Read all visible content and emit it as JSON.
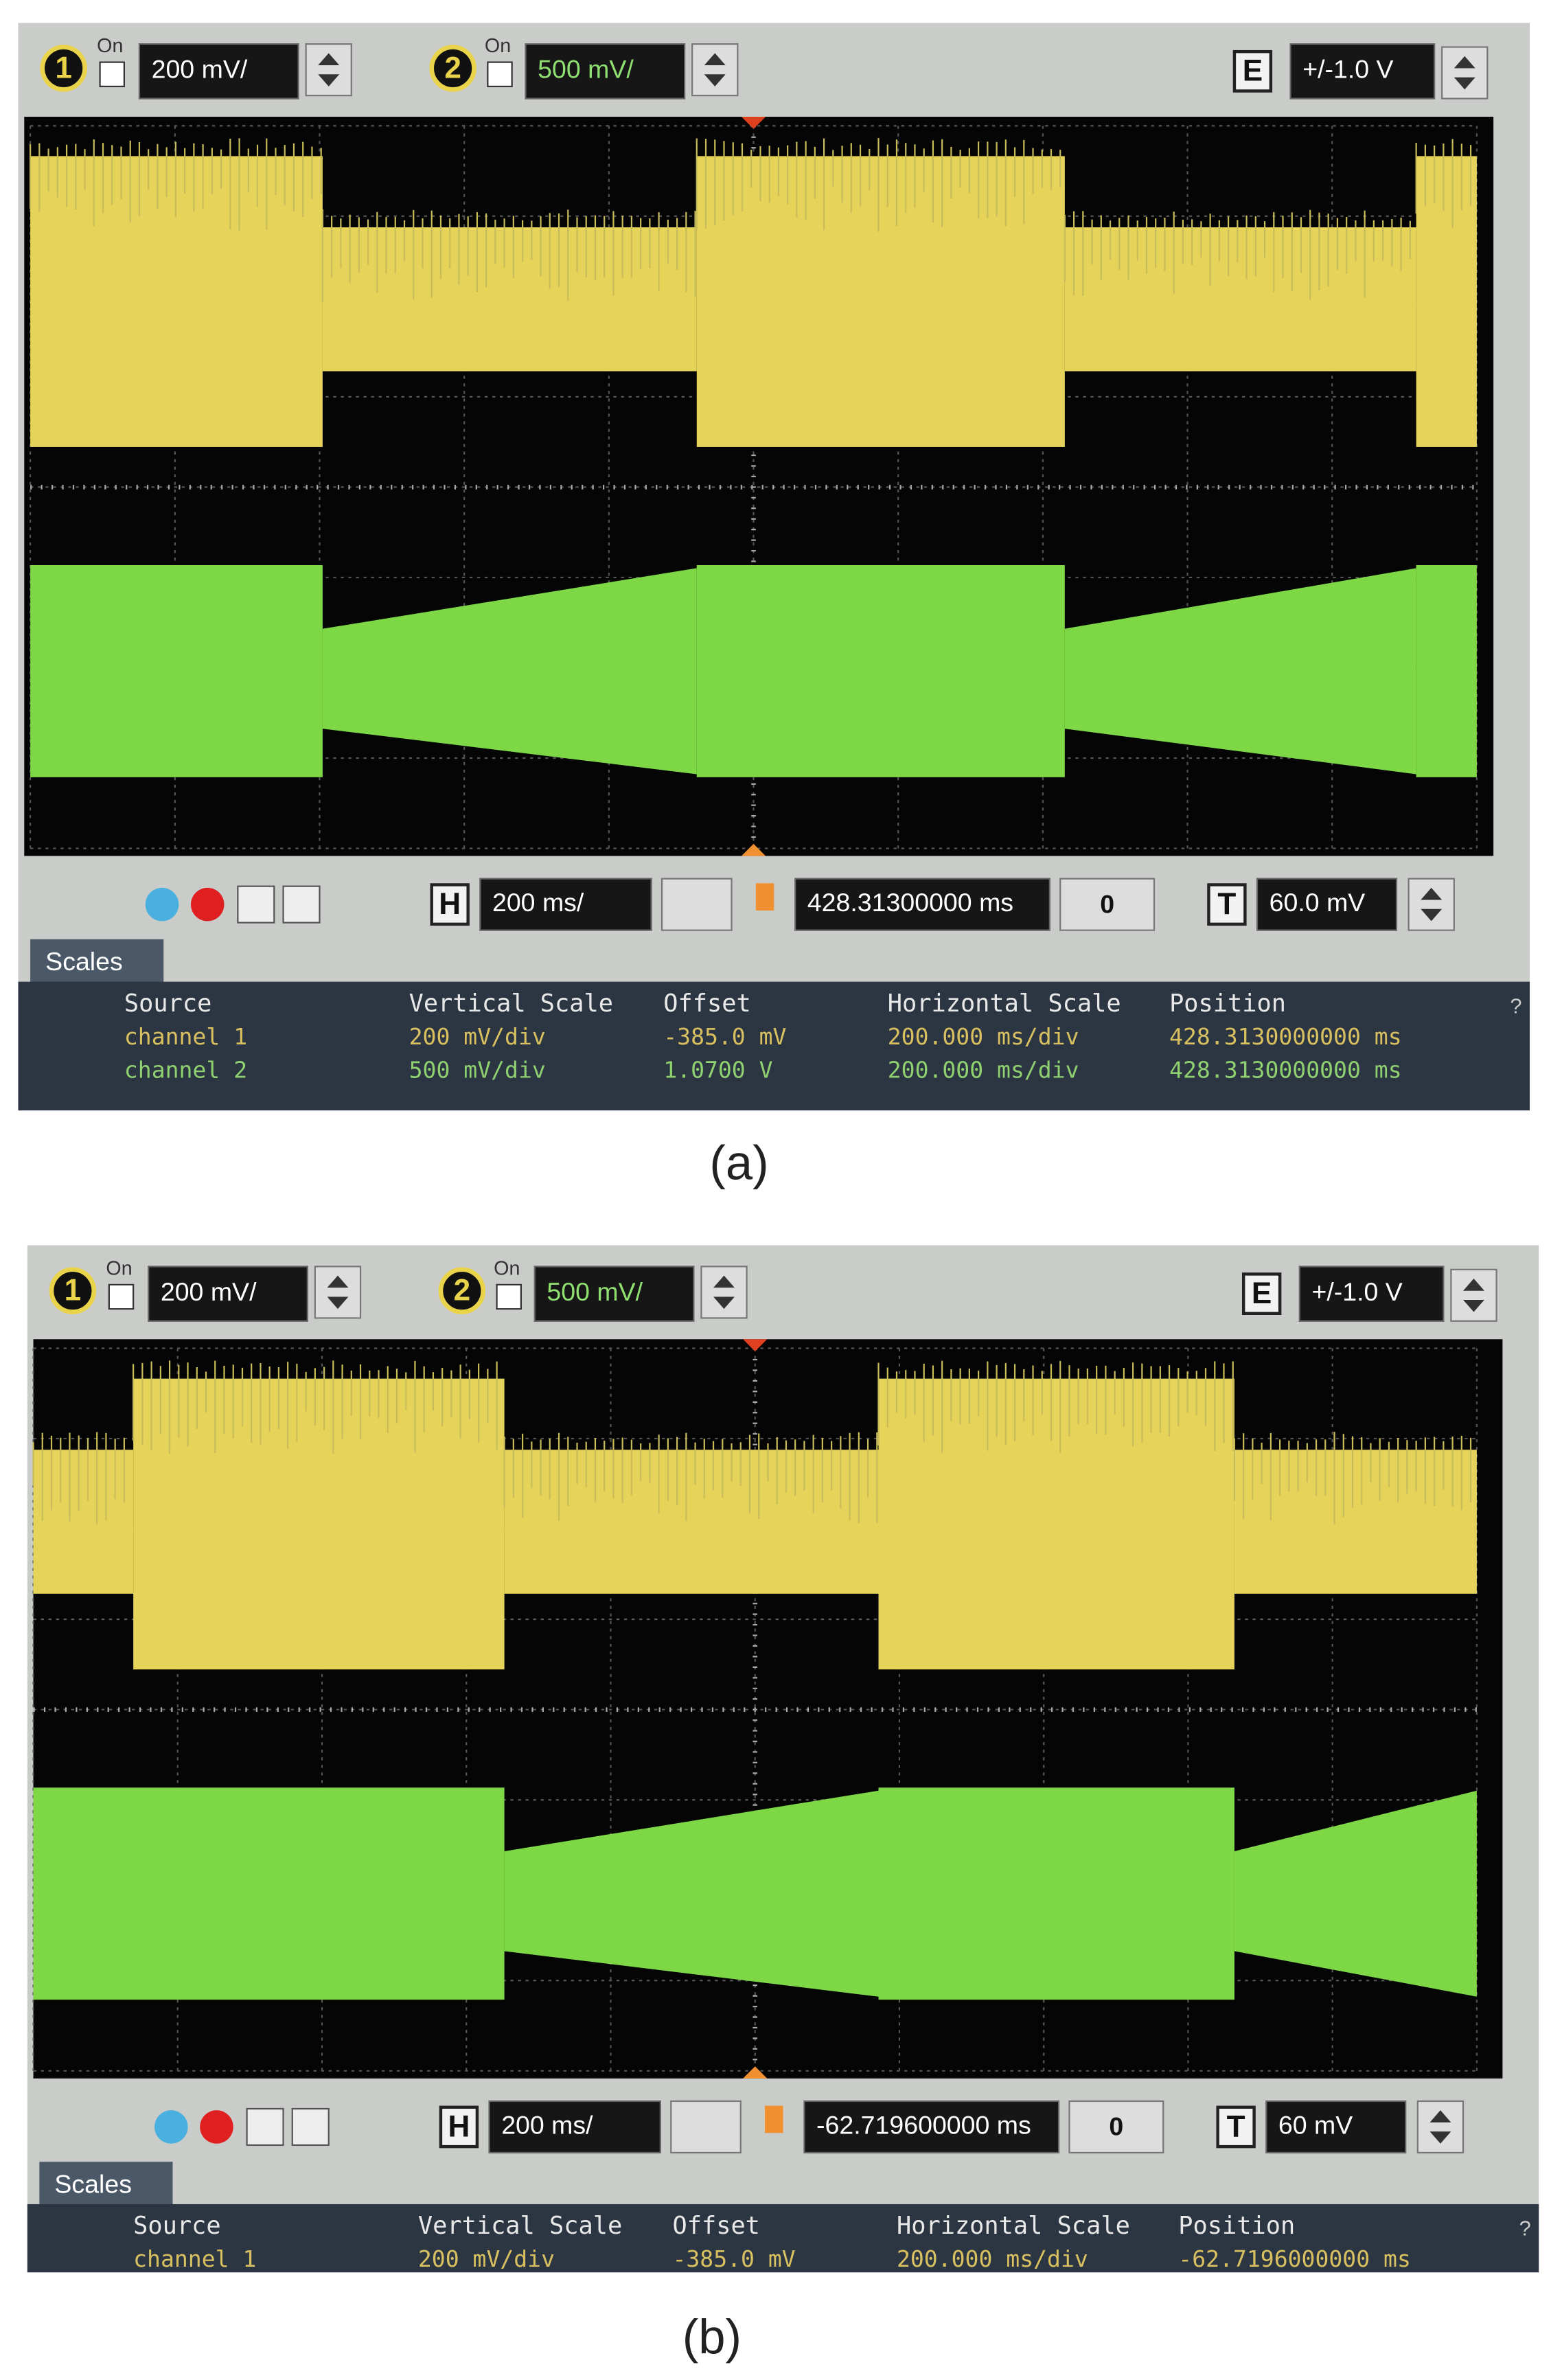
{
  "panels": [
    {
      "toolbar": {
        "ch1_badge": "1",
        "ch1_on": "On",
        "ch1_scale": "200 mV/",
        "ch2_badge": "2",
        "ch2_on": "On",
        "ch2_scale": "500 mV/",
        "e_badge": "E",
        "e_range": "+/-1.0 V",
        "h_badge": "H",
        "h_scale": "200 ms/",
        "h_position": "428.31300000 ms",
        "nav": "0",
        "t_badge": "T",
        "trigger": "60.0 mV",
        "tab": "Scales",
        "help": "?"
      },
      "table": {
        "headers": [
          "Source",
          "Vertical Scale",
          "Offset",
          "Horizontal Scale",
          "Position"
        ],
        "rows": [
          [
            "channel 1",
            "200 mV/div",
            "-385.0 mV",
            "200.000 ms/div",
            "428.3130000000 ms"
          ],
          [
            "channel 2",
            "500 mV/div",
            "1.0700 V",
            "200.000 ms/div",
            "428.3130000000 ms"
          ]
        ]
      },
      "caption": "(a)"
    },
    {
      "toolbar": {
        "ch1_badge": "1",
        "ch1_on": "On",
        "ch1_scale": "200 mV/",
        "ch2_badge": "2",
        "ch2_on": "On",
        "ch2_scale": "500 mV/",
        "e_badge": "E",
        "e_range": "+/-1.0 V",
        "h_badge": "H",
        "h_scale": "200 ms/",
        "h_position": "-62.719600000 ms",
        "nav": "0",
        "t_badge": "T",
        "trigger": "60 mV",
        "tab": "Scales",
        "help": "?"
      },
      "table": {
        "headers": [
          "Source",
          "Vertical Scale",
          "Offset",
          "Horizontal Scale",
          "Position"
        ],
        "rows": [
          [
            "channel 1",
            "200 mV/div",
            "-385.0 mV",
            "200.000 ms/div",
            "-62.7196000000 ms"
          ]
        ]
      },
      "caption": "(b)"
    }
  ]
}
